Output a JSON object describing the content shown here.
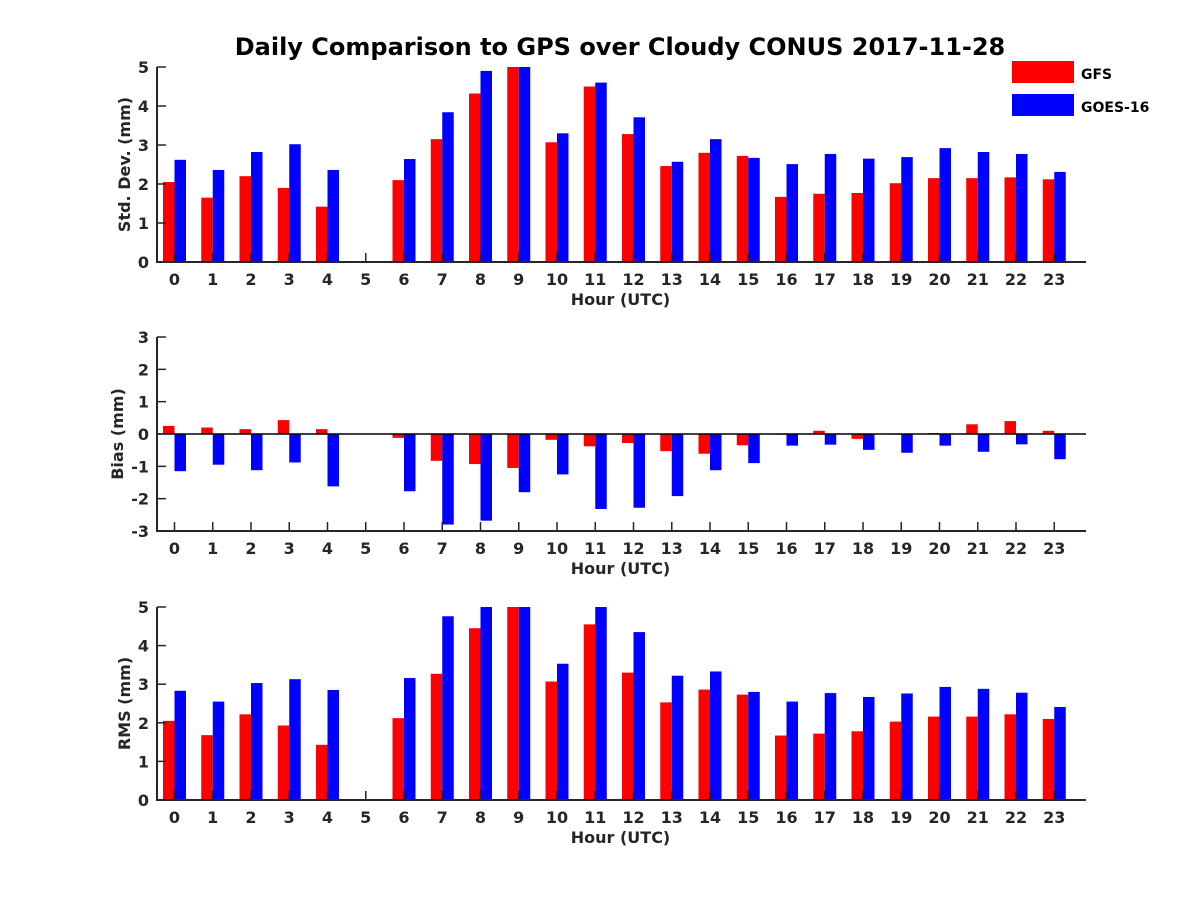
{
  "title": "Daily Comparison to GPS over Cloudy CONUS 2017-11-28",
  "colors": {
    "GFS": "#ff0000",
    "GOES-16": "#0000ff"
  },
  "chart_data": [
    {
      "type": "bar",
      "ylabel": "Std. Dev. (mm)",
      "xlabel": "Hour (UTC)",
      "ylim": [
        0,
        5
      ],
      "yticks": [
        0,
        1,
        2,
        3,
        4,
        5
      ],
      "categories": [
        "0",
        "1",
        "2",
        "3",
        "4",
        "5",
        "6",
        "7",
        "8",
        "9",
        "10",
        "11",
        "12",
        "13",
        "14",
        "15",
        "16",
        "17",
        "18",
        "19",
        "20",
        "21",
        "22",
        "23"
      ],
      "series": [
        {
          "name": "GFS",
          "values": [
            2.05,
            1.65,
            2.2,
            1.9,
            1.42,
            null,
            2.1,
            3.15,
            4.32,
            5.0,
            3.07,
            4.5,
            3.28,
            2.46,
            2.8,
            2.72,
            1.67,
            1.75,
            1.77,
            2.02,
            2.15,
            2.15,
            2.17,
            2.12
          ]
        },
        {
          "name": "GOES-16",
          "values": [
            2.62,
            2.36,
            2.82,
            3.02,
            2.36,
            null,
            2.64,
            3.84,
            4.9,
            5.0,
            3.3,
            4.6,
            3.71,
            2.57,
            3.15,
            2.67,
            2.51,
            2.77,
            2.65,
            2.69,
            2.92,
            2.82,
            2.77,
            2.31
          ]
        }
      ],
      "legend": "top-right"
    },
    {
      "type": "bar",
      "ylabel": "Bias (mm)",
      "xlabel": "Hour (UTC)",
      "ylim": [
        -3,
        3
      ],
      "yticks": [
        -3,
        -2,
        -1,
        0,
        1,
        2,
        3
      ],
      "categories": [
        "0",
        "1",
        "2",
        "3",
        "4",
        "5",
        "6",
        "7",
        "8",
        "9",
        "10",
        "11",
        "12",
        "13",
        "14",
        "15",
        "16",
        "17",
        "18",
        "19",
        "20",
        "21",
        "22",
        "23"
      ],
      "series": [
        {
          "name": "GFS",
          "values": [
            0.25,
            0.2,
            0.15,
            0.43,
            0.15,
            null,
            -0.12,
            -0.83,
            -0.93,
            -1.05,
            -0.18,
            -0.38,
            -0.28,
            -0.53,
            -0.61,
            -0.35,
            -0.02,
            0.1,
            -0.15,
            -0.02,
            0.03,
            0.3,
            0.4,
            0.1
          ]
        },
        {
          "name": "GOES-16",
          "values": [
            -1.15,
            -0.95,
            -1.12,
            -0.88,
            -1.62,
            null,
            -1.77,
            -2.8,
            -2.68,
            -1.8,
            -1.25,
            -2.32,
            -2.28,
            -1.92,
            -1.12,
            -0.9,
            -0.36,
            -0.33,
            -0.49,
            -0.58,
            -0.36,
            -0.55,
            -0.32,
            -0.78
          ]
        }
      ]
    },
    {
      "type": "bar",
      "ylabel": "RMS (mm)",
      "xlabel": "Hour (UTC)",
      "ylim": [
        0,
        5
      ],
      "yticks": [
        0,
        1,
        2,
        3,
        4,
        5
      ],
      "categories": [
        "0",
        "1",
        "2",
        "3",
        "4",
        "5",
        "6",
        "7",
        "8",
        "9",
        "10",
        "11",
        "12",
        "13",
        "14",
        "15",
        "16",
        "17",
        "18",
        "19",
        "20",
        "21",
        "22",
        "23"
      ],
      "series": [
        {
          "name": "GFS",
          "values": [
            2.05,
            1.68,
            2.22,
            1.93,
            1.43,
            null,
            2.12,
            3.27,
            4.45,
            5.0,
            3.07,
            4.55,
            3.3,
            2.53,
            2.86,
            2.73,
            1.67,
            1.72,
            1.78,
            2.03,
            2.16,
            2.16,
            2.22,
            2.1
          ]
        },
        {
          "name": "GOES-16",
          "values": [
            2.83,
            2.55,
            3.03,
            3.13,
            2.85,
            null,
            3.16,
            4.76,
            5.0,
            5.0,
            3.53,
            5.0,
            4.35,
            3.22,
            3.33,
            2.8,
            2.55,
            2.77,
            2.67,
            2.76,
            2.93,
            2.88,
            2.78,
            2.41
          ]
        }
      ]
    }
  ]
}
